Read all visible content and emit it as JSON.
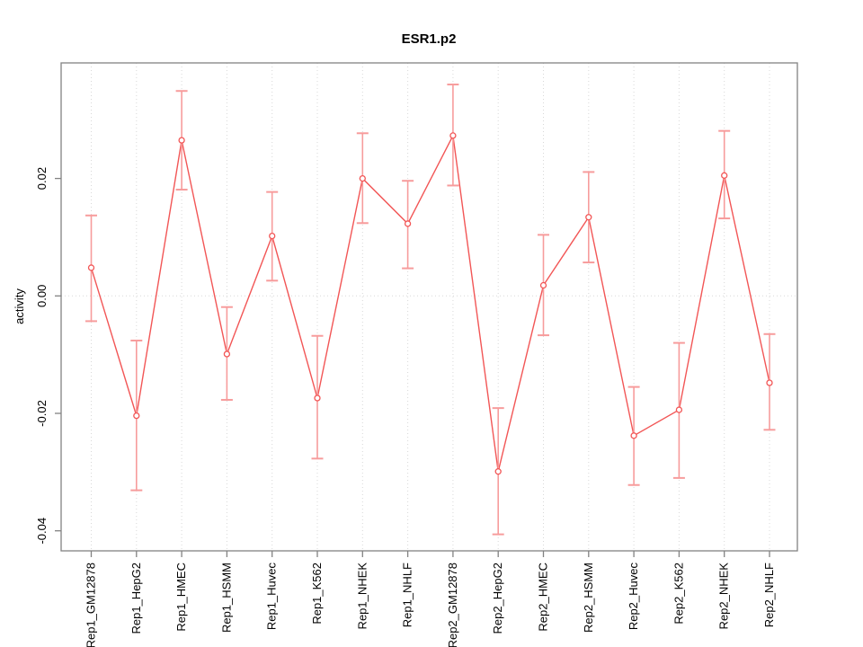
{
  "chart_data": {
    "type": "line",
    "title": "ESR1.p2",
    "xlabel": "",
    "ylabel": "activity",
    "categories": [
      "Rep1_GM12878",
      "Rep1_HepG2",
      "Rep1_HMEC",
      "Rep1_HSMM",
      "Rep1_Huvec",
      "Rep1_K562",
      "Rep1_NHEK",
      "Rep1_NHLF",
      "Rep2_GM12878",
      "Rep2_HepG2",
      "Rep2_HMEC",
      "Rep2_HSMM",
      "Rep2_Huvec",
      "Rep2_K562",
      "Rep2_NHEK",
      "Rep2_NHLF"
    ],
    "series": [
      {
        "name": "activity",
        "values": [
          0.0048,
          -0.0204,
          0.0265,
          -0.0099,
          0.0102,
          -0.0174,
          0.02,
          0.0123,
          0.0273,
          -0.0299,
          0.0018,
          0.0134,
          -0.0238,
          -0.0194,
          0.0205,
          -0.0148
        ],
        "error_lower": [
          -0.0043,
          -0.0331,
          0.0181,
          -0.0177,
          0.0026,
          -0.0277,
          0.0124,
          0.0047,
          0.0188,
          -0.0406,
          -0.0067,
          0.0057,
          -0.0322,
          -0.031,
          0.0132,
          -0.0228
        ],
        "error_upper": [
          0.0137,
          -0.0076,
          0.0349,
          -0.0019,
          0.0177,
          -0.0068,
          0.0277,
          0.0196,
          0.036,
          -0.0191,
          0.0104,
          0.0211,
          -0.0155,
          -0.008,
          0.0281,
          -0.0065
        ]
      }
    ],
    "yticks": [
      -0.04,
      -0.02,
      0.0,
      0.02
    ],
    "ytick_labels": [
      "-0.04",
      "-0.02",
      "0.00",
      "0.02"
    ],
    "ylim": [
      -0.0437,
      0.0397
    ],
    "grid": "dotted vertical at each category, dotted horizontal at 0",
    "legend_position": "none",
    "colors": {
      "line": "#f25656",
      "error_bar": "#f79c9c",
      "grid": "#d8d8d8",
      "box": "#828282",
      "text": "#000000"
    }
  }
}
